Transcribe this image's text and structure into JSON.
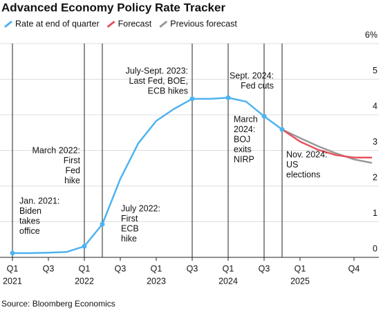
{
  "chart_data": {
    "type": "line",
    "title": "Advanced Economy Policy Rate Tracker",
    "source": "Source: Bloomberg Economics",
    "categories": [
      "Q1",
      null,
      "Q3",
      null,
      "Q1",
      null,
      "Q3",
      null,
      "Q1",
      null,
      "Q3",
      null,
      "Q1",
      null,
      "Q3",
      null,
      "Q1",
      null,
      null,
      "Q4",
      null
    ],
    "category_years": [
      "2021",
      null,
      null,
      null,
      "2022",
      null,
      null,
      null,
      "2023",
      null,
      null,
      null,
      "2024",
      null,
      null,
      null,
      "2025",
      null,
      null,
      null,
      null
    ],
    "series": [
      {
        "name": "Rate at end of quarter",
        "color": "#4eb3ef",
        "values": [
          0.12,
          0.12,
          0.13,
          0.15,
          0.31,
          0.93,
          2.2,
          3.2,
          3.83,
          4.17,
          4.45,
          4.45,
          4.48,
          4.37,
          3.96,
          3.59,
          null,
          null,
          null,
          null,
          null
        ]
      },
      {
        "name": "Forecast",
        "color": "#e8505b",
        "values": [
          null,
          null,
          null,
          null,
          null,
          null,
          null,
          null,
          null,
          null,
          null,
          null,
          null,
          null,
          null,
          3.59,
          3.25,
          3.02,
          2.87,
          2.8,
          2.8
        ]
      },
      {
        "name": "Previous forecast",
        "color": "#999999",
        "values": [
          null,
          null,
          null,
          null,
          null,
          null,
          null,
          null,
          null,
          null,
          null,
          null,
          null,
          null,
          null,
          3.59,
          3.35,
          3.12,
          2.92,
          2.75,
          2.65
        ]
      }
    ],
    "event_quarters": [
      0,
      4,
      5,
      10,
      12,
      14,
      15
    ],
    "annotations": [
      [
        "Jan. 2021:",
        "Biden",
        "takes",
        "office"
      ],
      [
        "March 2022:",
        "First",
        "Fed",
        "hike"
      ],
      [
        "July 2022:",
        "First",
        "ECB",
        "hike"
      ],
      [
        "July-Sept. 2023:",
        "Last Fed, BOE,",
        "ECB hikes"
      ],
      [
        "Sept. 2024:",
        "Fed cuts"
      ],
      [
        "March",
        "2024:",
        "BOJ",
        "exits",
        "NIRP"
      ],
      [
        "Nov. 2024:",
        "US",
        "elections"
      ]
    ],
    "ylim": [
      0,
      6
    ],
    "yticks": [
      0,
      1,
      2,
      3,
      4,
      5,
      {
        "value": 6,
        "label": "6%"
      }
    ],
    "grid": true
  }
}
